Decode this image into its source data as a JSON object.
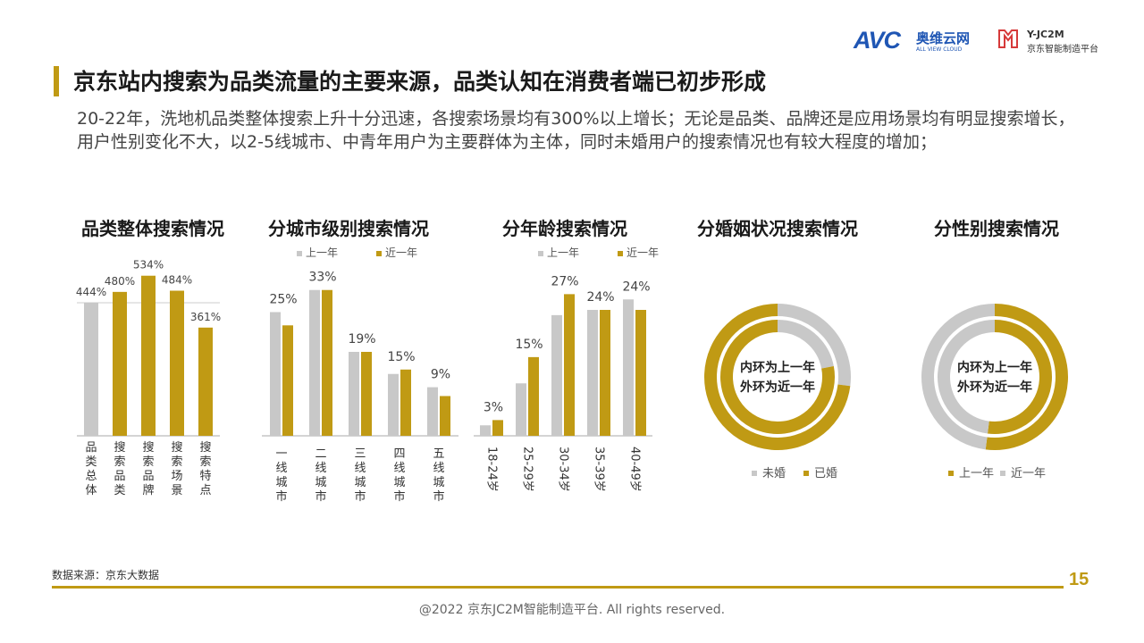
{
  "header": {
    "logo_avc": "AVC",
    "logo_avc_cn": "奥维云网",
    "logo_avc_en": "ALL VIEW CLOUD",
    "logo_jc_line1": "Y-JC2M",
    "logo_jc_line2": "京东智能制造平台"
  },
  "page_title": "京东站内搜索为品类流量的主要来源，品类认知在消费者端已初步形成",
  "subtitle": "20-22年，洗地机品类整体搜索上升十分迅速，各搜索场景均有300%以上增长；无论是品类、品牌还是应用场景均有明显搜索增长，用户性别变化不大，以2-5线城市、中青年用户为主要群体为主体，同时未婚用户的搜索情况也有较大程度的增加；",
  "colors": {
    "gold": "#c09a14",
    "gray": "#c8c8c8",
    "accent": "#c09a14"
  },
  "legend_labels": {
    "prev": "上一年",
    "recent": "近一年"
  },
  "chart_data": [
    {
      "type": "bar",
      "title": "品类整体搜索情况",
      "categories": [
        "品类总体",
        "搜索品类",
        "搜索品牌",
        "搜索场景",
        "搜索特点"
      ],
      "values": [
        444,
        480,
        534,
        484,
        361
      ],
      "labels": [
        "444%",
        "480%",
        "534%",
        "484%",
        "361%"
      ],
      "bar_colors": [
        "#c8c8c8",
        "#c09a14",
        "#c09a14",
        "#c09a14",
        "#c09a14"
      ],
      "reference_line": 444,
      "ylim": [
        0,
        560
      ]
    },
    {
      "type": "bar",
      "title": "分城市级别搜索情况",
      "categories": [
        "一线城市",
        "二线城市",
        "三线城市",
        "四线城市",
        "五线城市"
      ],
      "series": [
        {
          "name": "上一年",
          "values": [
            28,
            33,
            19,
            14,
            11
          ]
        },
        {
          "name": "近一年",
          "values": [
            25,
            33,
            19,
            15,
            9
          ]
        }
      ],
      "labels": [
        "25%",
        "33%",
        "19%",
        "15%",
        "9%"
      ],
      "ylim": [
        0,
        38
      ]
    },
    {
      "type": "bar",
      "title": "分年龄搜索情况",
      "categories": [
        "18-24岁",
        "25-29岁",
        "30-34岁",
        "35-39岁",
        "40-49岁"
      ],
      "series": [
        {
          "name": "上一年",
          "values": [
            2,
            10,
            23,
            24,
            26
          ]
        },
        {
          "name": "近一年",
          "values": [
            3,
            15,
            27,
            24,
            24
          ]
        }
      ],
      "labels": [
        "3%",
        "15%",
        "27%",
        "24%",
        "24%"
      ],
      "ylim": [
        0,
        32
      ]
    },
    {
      "type": "pie",
      "title": "分婚姻状况搜索情况",
      "center_text": [
        "内环为上一年",
        "外环为近一年"
      ],
      "legend": [
        "未婚",
        "已婚"
      ],
      "legend_colors": [
        "#c8c8c8",
        "#c09a14"
      ],
      "inner_ring": [
        {
          "name": "未婚",
          "value": 22,
          "color": "#c8c8c8"
        },
        {
          "name": "已婚",
          "value": 78,
          "color": "#c09a14"
        }
      ],
      "outer_ring": [
        {
          "name": "未婚",
          "value": 27,
          "color": "#c8c8c8"
        },
        {
          "name": "已婚",
          "value": 73,
          "color": "#c09a14"
        }
      ]
    },
    {
      "type": "pie",
      "title": "分性别搜索情况",
      "center_text": [
        "内环为上一年",
        "外环为近一年"
      ],
      "legend": [
        "上一年",
        "近一年"
      ],
      "legend_colors": [
        "#c09a14",
        "#c8c8c8"
      ],
      "inner_ring": [
        {
          "value": 52,
          "color": "#c09a14"
        },
        {
          "value": 48,
          "color": "#c8c8c8"
        }
      ],
      "outer_ring": [
        {
          "value": 52,
          "color": "#c09a14"
        },
        {
          "value": 48,
          "color": "#c8c8c8"
        }
      ]
    }
  ],
  "footer": {
    "source": "数据来源：京东大数据",
    "page_number": "15",
    "copyright": "@2022 京东JC2M智能制造平台. All rights reserved."
  }
}
